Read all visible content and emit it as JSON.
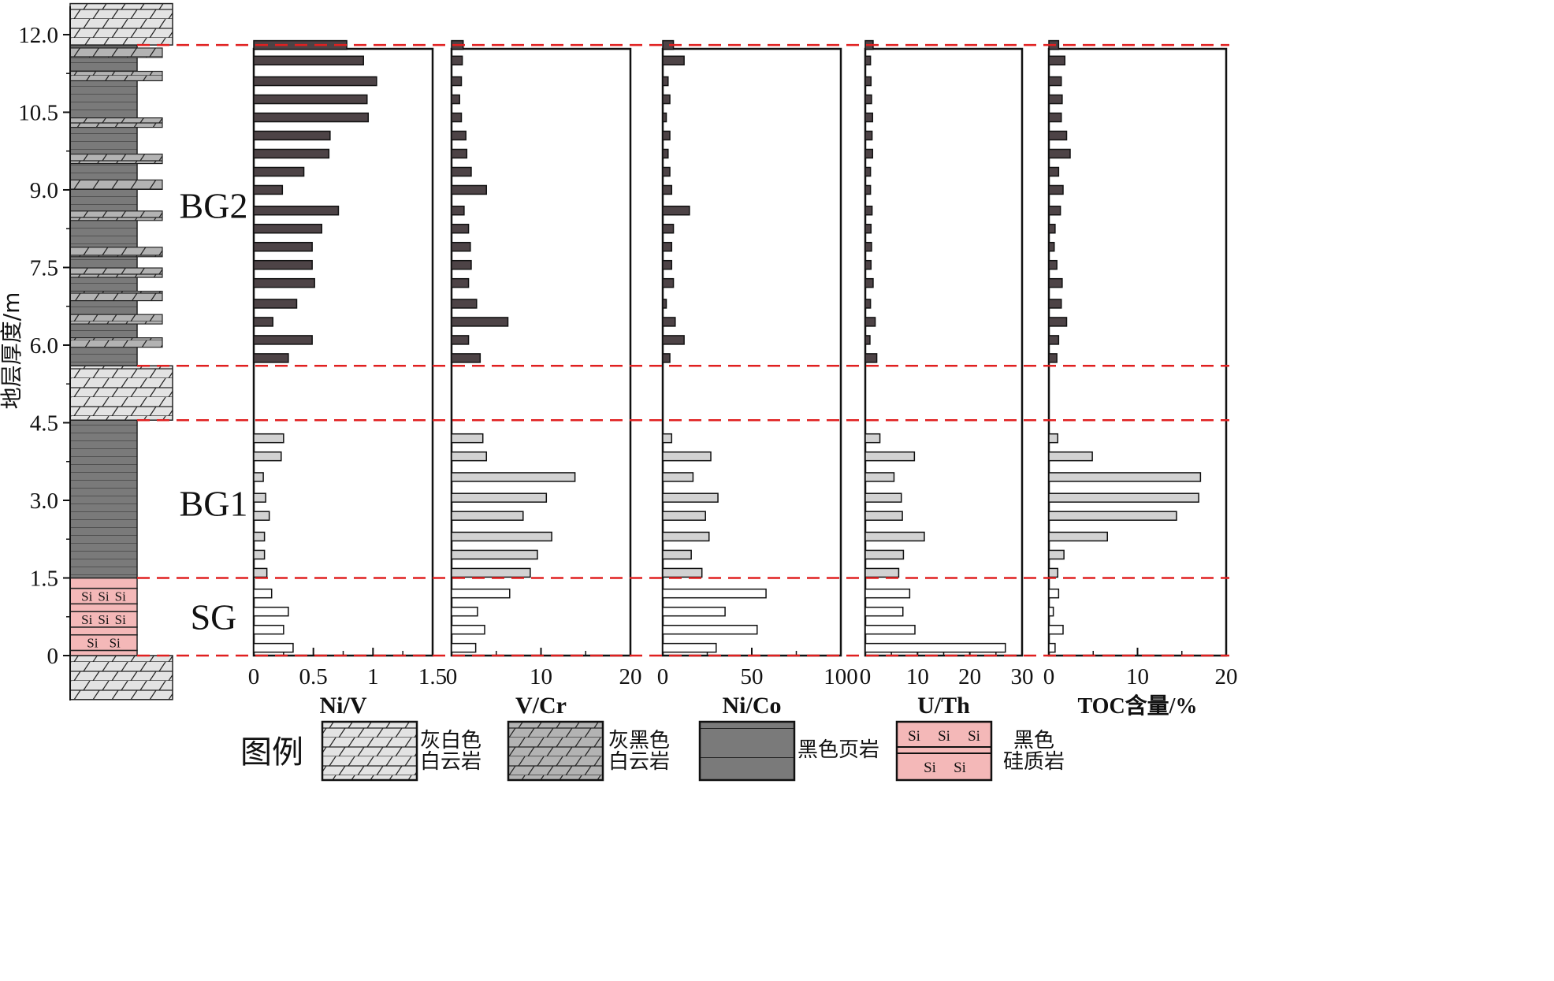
{
  "y_axis": {
    "label": "地层厚度/m",
    "range": [
      0,
      12.0
    ],
    "ticks": [
      "0",
      "1.5",
      "3.0",
      "4.5",
      "6.0",
      "7.5",
      "9.0",
      "10.5",
      "12.0"
    ]
  },
  "zone_boundaries_m": [
    0,
    1.5,
    4.55,
    5.6,
    11.8
  ],
  "zones": [
    {
      "name": "SG",
      "center_m": 0.75
    },
    {
      "name": "BG1",
      "center_m": 2.95
    },
    {
      "name": "BG2",
      "center_m": 8.7
    }
  ],
  "chart_data": [
    {
      "type": "bar",
      "orientation": "horizontal",
      "xlabel": "Ni/V",
      "xlim": [
        0,
        1.5
      ],
      "ticks": [
        "0",
        "0.5",
        "1",
        "1.5"
      ],
      "depth_m": [
        0.15,
        0.5,
        0.85,
        1.2,
        1.6,
        1.95,
        2.3,
        2.7,
        3.05,
        3.45,
        3.85,
        4.2,
        5.75,
        6.1,
        6.45,
        6.8,
        7.2,
        7.55,
        7.9,
        8.25,
        8.6,
        9.0,
        9.35,
        9.7,
        10.05,
        10.4,
        10.75,
        11.1,
        11.5,
        11.8
      ],
      "values": [
        0.33,
        0.25,
        0.29,
        0.15,
        0.11,
        0.09,
        0.09,
        0.13,
        0.1,
        0.08,
        0.23,
        0.25,
        0.29,
        0.49,
        0.16,
        0.36,
        0.51,
        0.49,
        0.49,
        0.57,
        0.71,
        0.24,
        0.42,
        0.63,
        0.64,
        0.96,
        0.95,
        1.03,
        0.92,
        0.78
      ]
    },
    {
      "type": "bar",
      "orientation": "horizontal",
      "xlabel": "V/Cr",
      "xlim": [
        0,
        20
      ],
      "ticks": [
        "0",
        "10",
        "20"
      ],
      "depth_m": [
        0.15,
        0.5,
        0.85,
        1.2,
        1.6,
        1.95,
        2.3,
        2.7,
        3.05,
        3.45,
        3.85,
        4.2,
        5.75,
        6.1,
        6.45,
        6.8,
        7.2,
        7.55,
        7.9,
        8.25,
        8.6,
        9.0,
        9.35,
        9.7,
        10.05,
        10.4,
        10.75,
        11.1,
        11.5,
        11.8
      ],
      "values": [
        2.7,
        3.7,
        2.9,
        6.5,
        8.8,
        9.6,
        11.2,
        8.0,
        10.6,
        13.8,
        3.9,
        3.5,
        3.2,
        1.9,
        6.3,
        2.8,
        1.9,
        2.2,
        2.1,
        1.9,
        1.4,
        3.9,
        2.2,
        1.7,
        1.6,
        1.1,
        0.9,
        1.1,
        1.2,
        1.3
      ]
    },
    {
      "type": "bar",
      "orientation": "horizontal",
      "xlabel": "Ni/Co",
      "xlim": [
        0,
        100
      ],
      "ticks": [
        "0",
        "50",
        "100"
      ],
      "depth_m": [
        0.15,
        0.5,
        0.85,
        1.2,
        1.6,
        1.95,
        2.3,
        2.7,
        3.05,
        3.45,
        3.85,
        4.2,
        5.75,
        6.1,
        6.45,
        6.8,
        7.2,
        7.55,
        7.9,
        8.25,
        8.6,
        9.0,
        9.35,
        9.7,
        10.05,
        10.4,
        10.75,
        11.1,
        11.5,
        11.8
      ],
      "values": [
        30,
        53,
        35,
        58,
        22,
        16,
        26,
        24,
        31,
        17,
        27,
        5,
        4,
        12,
        7,
        2,
        6,
        5,
        5,
        6,
        15,
        5,
        4,
        3,
        4,
        2,
        4,
        3,
        12,
        6
      ]
    },
    {
      "type": "bar",
      "orientation": "horizontal",
      "xlabel": "U/Th",
      "xlim": [
        0,
        30
      ],
      "ticks": [
        "0",
        "10",
        "20",
        "30"
      ],
      "depth_m": [
        0.15,
        0.5,
        0.85,
        1.2,
        1.6,
        1.95,
        2.3,
        2.7,
        3.05,
        3.45,
        3.85,
        4.2,
        5.75,
        6.1,
        6.45,
        6.8,
        7.2,
        7.55,
        7.9,
        8.25,
        8.6,
        9.0,
        9.35,
        9.7,
        10.05,
        10.4,
        10.75,
        11.1,
        11.5,
        11.8
      ],
      "values": [
        26.8,
        9.5,
        7.2,
        8.5,
        6.4,
        7.3,
        11.3,
        7.1,
        6.9,
        5.5,
        9.4,
        2.8,
        2.2,
        0.9,
        1.9,
        1.0,
        1.5,
        1.1,
        1.2,
        1.1,
        1.3,
        1.0,
        1.0,
        1.4,
        1.3,
        1.4,
        1.2,
        1.1,
        1.0,
        1.5
      ]
    },
    {
      "type": "bar",
      "orientation": "horizontal",
      "xlabel": "TOC含量/%",
      "xlim": [
        0,
        20
      ],
      "ticks": [
        "0",
        "10",
        "20"
      ],
      "depth_m": [
        0.15,
        0.5,
        0.85,
        1.2,
        1.6,
        1.95,
        2.3,
        2.7,
        3.05,
        3.45,
        3.85,
        4.2,
        5.75,
        6.1,
        6.45,
        6.8,
        7.2,
        7.55,
        7.9,
        8.25,
        8.6,
        9.0,
        9.35,
        9.7,
        10.05,
        10.4,
        10.75,
        11.1,
        11.5,
        11.8
      ],
      "values": [
        0.7,
        1.6,
        0.5,
        1.1,
        1.0,
        1.7,
        6.6,
        14.4,
        16.9,
        17.1,
        4.9,
        1.0,
        0.9,
        1.1,
        2.0,
        1.4,
        1.5,
        0.9,
        0.6,
        0.7,
        1.3,
        1.6,
        1.1,
        2.4,
        2.0,
        1.4,
        1.5,
        1.4,
        1.8,
        1.1
      ]
    }
  ],
  "column_layers": [
    {
      "from_m": -0.85,
      "to_m": 0,
      "lithology": "light-gray-dolomite"
    },
    {
      "from_m": 0,
      "to_m": 0.1,
      "lithology": "pink-chert"
    },
    {
      "from_m": 0.1,
      "to_m": 0.4,
      "lithology": "pink-chert",
      "label": "Si Si"
    },
    {
      "from_m": 0.4,
      "to_m": 0.55,
      "lithology": "pink-chert"
    },
    {
      "from_m": 0.55,
      "to_m": 0.85,
      "lithology": "pink-chert",
      "label": "Si Si Si"
    },
    {
      "from_m": 0.85,
      "to_m": 1.0,
      "lithology": "pink-chert"
    },
    {
      "from_m": 1.0,
      "to_m": 1.3,
      "lithology": "pink-chert",
      "label": "Si Si Si"
    },
    {
      "from_m": 1.3,
      "to_m": 1.5,
      "lithology": "pink-chert"
    },
    {
      "from_m": 1.5,
      "to_m": 4.55,
      "lithology": "black-shale"
    },
    {
      "from_m": 4.55,
      "to_m": 5.6,
      "lithology": "light-gray-dolomite"
    },
    {
      "from_m": 5.6,
      "to_m": 11.8,
      "lithology": "black-shale"
    },
    {
      "from_m": 11.8,
      "to_m": 12.6,
      "lithology": "light-gray-dolomite"
    }
  ],
  "column_dolomite_bands_m": [
    6.05,
    6.5,
    6.95,
    7.4,
    7.8,
    8.5,
    9.1,
    9.6,
    10.3,
    11.2,
    11.65
  ],
  "legend": {
    "title": "图例",
    "items": [
      {
        "swatch": "light-gray-dolomite",
        "line1": "灰白色",
        "line2": "白云岩"
      },
      {
        "swatch": "dark-gray-dolomite",
        "line1": "灰黑色",
        "line2": "白云岩"
      },
      {
        "swatch": "black-shale",
        "line1": "黑色页岩",
        "line2": ""
      },
      {
        "swatch": "pink-chert",
        "line1": "黑色",
        "line2": "硅质岩",
        "si_top": "Si Si Si",
        "si_bottom": "Si Si"
      }
    ]
  },
  "colors": {
    "bg2_bar": "#4d4346",
    "bg1_bar": "#d2d2d2",
    "sg_bar": "#ffffff",
    "light_dolomite": "#e3e3e3",
    "dark_dolomite": "#b3b3b3",
    "shale": "#7a7a7a",
    "chert": "#f4b8b8",
    "boundary": "#e02020"
  }
}
